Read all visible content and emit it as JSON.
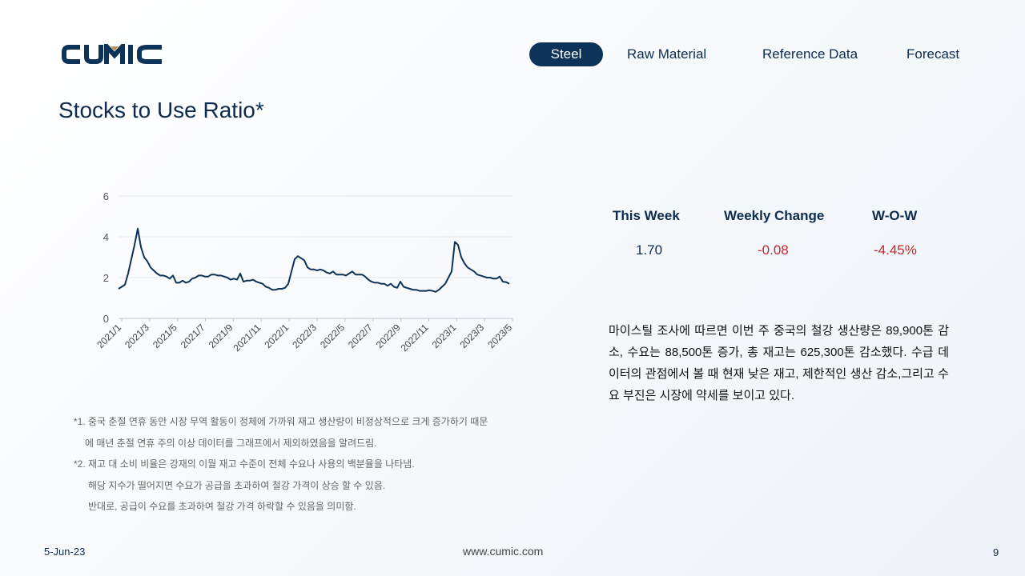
{
  "brand": {
    "logo_text": "CUMIC"
  },
  "nav": {
    "items": [
      {
        "label": "Steel",
        "active": true
      },
      {
        "label": "Raw Material",
        "active": false
      },
      {
        "label": "Reference Data",
        "active": false
      },
      {
        "label": "Forecast",
        "active": false
      }
    ]
  },
  "page": {
    "title": "Stocks to Use Ratio*"
  },
  "chart_data": {
    "type": "line",
    "title": "",
    "xlabel": "",
    "ylabel": "",
    "ylim": [
      0,
      6
    ],
    "yticks": [
      0,
      2,
      4,
      6
    ],
    "grid": "horizontal",
    "line_color": "#0d3358",
    "x_tick_labels": [
      "2021/1",
      "2021/3",
      "2021/5",
      "2021/7",
      "2021/9",
      "2021/11",
      "2022/1",
      "2022/3",
      "2022/5",
      "2022/7",
      "2022/9",
      "2022/11",
      "2023/1",
      "2023/3",
      "2023/5"
    ],
    "series": [
      {
        "values": [
          1.45,
          1.55,
          1.65,
          2.2,
          2.9,
          3.6,
          4.4,
          3.5,
          3.0,
          2.8,
          2.5,
          2.35,
          2.2,
          2.1,
          2.1,
          2.05,
          1.95,
          2.1,
          1.75,
          1.75,
          1.85,
          1.75,
          1.8,
          1.95,
          2.0,
          2.1,
          2.1,
          2.05,
          2.05,
          2.15,
          2.15,
          2.1,
          2.1,
          2.05,
          2.0,
          1.9,
          1.95,
          1.9,
          2.2,
          1.8,
          1.85,
          1.85,
          1.9,
          1.8,
          1.75,
          1.7,
          1.55,
          1.5,
          1.4,
          1.4,
          1.45,
          1.45,
          1.5,
          1.7,
          2.3,
          2.9,
          3.05,
          2.95,
          2.85,
          2.5,
          2.4,
          2.4,
          2.35,
          2.4,
          2.35,
          2.25,
          2.2,
          2.3,
          2.15,
          2.15,
          2.15,
          2.1,
          2.2,
          2.3,
          2.15,
          2.15,
          2.15,
          2.05,
          1.9,
          1.8,
          1.75,
          1.75,
          1.7,
          1.7,
          1.6,
          1.7,
          1.55,
          1.5,
          1.8,
          1.55,
          1.5,
          1.45,
          1.4,
          1.4,
          1.35,
          1.35,
          1.35,
          1.38,
          1.35,
          1.3,
          1.4,
          1.55,
          1.7,
          2.0,
          2.3,
          3.75,
          3.6,
          3.0,
          2.7,
          2.5,
          2.4,
          2.3,
          2.15,
          2.1,
          2.05,
          2.0,
          2.0,
          1.95,
          1.95,
          2.05,
          1.8,
          1.78,
          1.7
        ]
      }
    ]
  },
  "stats": {
    "headers": [
      "This Week",
      "Weekly Change",
      "W-O-W"
    ],
    "values": [
      "1.70",
      "-0.08",
      "-4.45%"
    ],
    "value_colors": [
      "#0d2b4e",
      "#c0282d",
      "#c0282d"
    ]
  },
  "description": "마이스틸 조사에 따르면 이번 주 중국의 철강 생산량은 89,900톤 감소, 수요는 88,500톤 증가, 총 재고는 625,300톤 감소했다. 수급 데이터의 관점에서 볼 때 현재 낮은 재고, 제한적인 생산 감소,그리고 수요 부진은 시장에 약세를 보이고 있다.",
  "notes": [
    "*1. 중국 춘절 연휴 동안 시장 무역 활동이 정체에 가까워 재고 생산량이 비정상적으로 크게 증가하기 때문",
    "에 매년 춘절 연휴 주의 이상 데이터를 그래프에서 제외하였음을 알려드림.",
    "*2. 재고 대 소비 비율은 강재의 이월 재고 수준이 전체 수요나 사용의 백분율을 나타냄.",
    "해당 지수가 떨어지면 수요가 공급을 초과하여 철강 가격이 상승 할 수 있음.",
    "반대로, 공급이 수요를 초과하여 철강 가격 하락할 수 있음을 의미함."
  ],
  "footer": {
    "date": "5-Jun-23",
    "website": "www.cumic.com",
    "page_number": "9"
  }
}
